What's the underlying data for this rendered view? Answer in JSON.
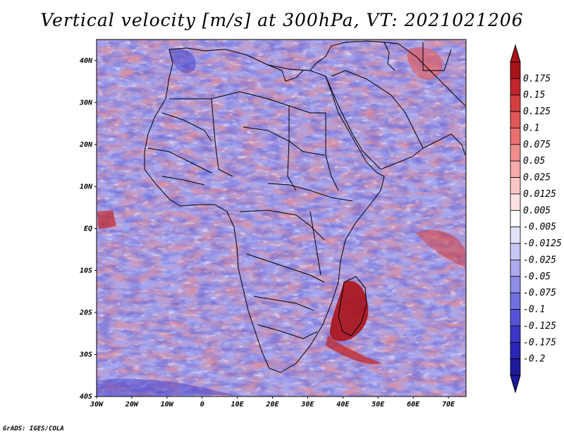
{
  "title": "Vertical velocity [m/s] at 300hPa, VT: 2021021206",
  "credit": "GrADS: IGES/COLA",
  "map": {
    "lat_labels": [
      "40N",
      "30N",
      "20N",
      "10N",
      "EQ",
      "10S",
      "20S",
      "30S",
      "40S"
    ],
    "lon_labels": [
      "30W",
      "20W",
      "10W",
      "0",
      "10E",
      "20E",
      "30E",
      "40E",
      "50E",
      "60E",
      "70E"
    ],
    "lat_range": [
      -40,
      45
    ],
    "lon_range": [
      -30,
      75
    ],
    "colors": {
      "strong_up": "#a50f15",
      "weak_up": "#f4a3a3",
      "weak_down": "#b4b4ee",
      "strong_down": "#3a36c0",
      "neutral": "#ffffff"
    }
  },
  "colorbar": {
    "labels": [
      "0.175",
      "0.15",
      "0.125",
      "0.1",
      "0.075",
      "0.05",
      "0.025",
      "0.0125",
      "0.005",
      "-0.005",
      "-0.0125",
      "-0.025",
      "-0.05",
      "-0.075",
      "-0.1",
      "-0.125",
      "-0.175",
      "-0.2"
    ],
    "colors": [
      "#a8131a",
      "#c0262b",
      "#d33f3f",
      "#e05757",
      "#ea7070",
      "#f18e8e",
      "#f6aaaa",
      "#fac5c5",
      "#fde2e2",
      "#ffffff",
      "#e2e2fb",
      "#c8c8f5",
      "#abaaee",
      "#8e8de7",
      "#7170df",
      "#5654d6",
      "#3b38c8",
      "#2a25b6",
      "#1f1a9a"
    ]
  }
}
